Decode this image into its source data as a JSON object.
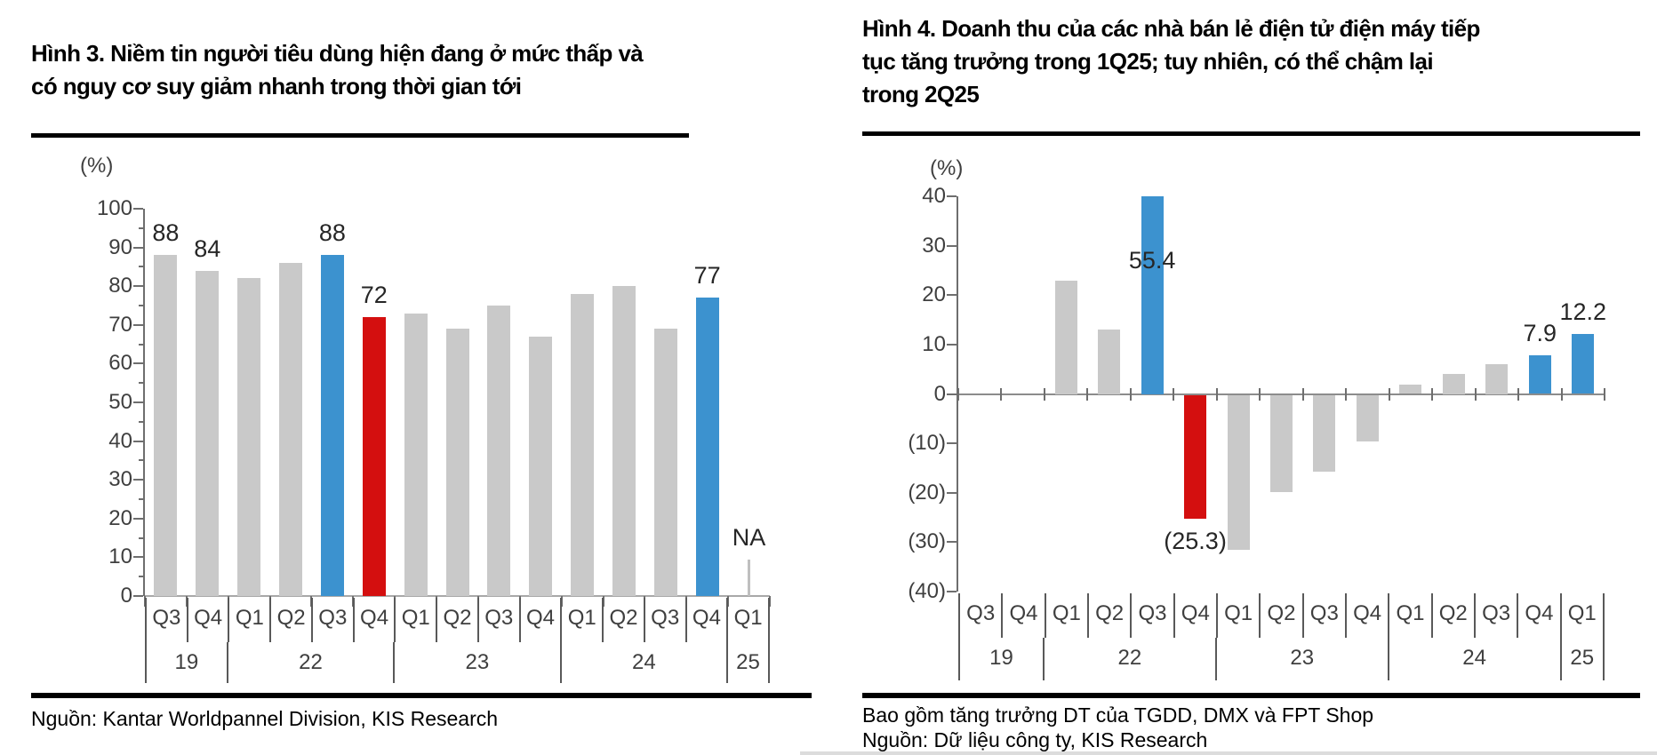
{
  "colors": {
    "gray_bar": "#C9C9C9",
    "blue_bar": "#3C92CF",
    "red_bar": "#D40F0F",
    "na_marker": "#BFBFBF",
    "axis_line": "#6E6E6E",
    "table_line": "#595959",
    "tick_text": "#3F3F3F",
    "label_text": "#262626"
  },
  "figure3": {
    "title_lines": [
      "Hình 3. Niềm tin người tiêu dùng hiện đang ở mức thấp và",
      "có nguy cơ suy giảm nhanh trong thời gian tới"
    ],
    "source": "Nguồn: Kantar Worldpannel Division, KIS Research"
  },
  "figure4": {
    "title_lines": [
      "Hình 4. Doanh thu của các nhà bán lẻ điện tử điện máy tiếp",
      "tục tăng trưởng trong 1Q25; tuy nhiên, có thể chậm lại",
      "trong 2Q25"
    ],
    "footnote": "Bao gồm tăng trưởng DT của TGDD, DMX và FPT Shop",
    "source": "Nguồn: Dữ liệu công ty, KIS Research"
  },
  "chart_data": [
    {
      "id": "fig3",
      "type": "bar",
      "title": "Hình 3. Niềm tin người tiêu dùng hiện đang ở mức thấp và có nguy cơ suy giảm nhanh trong thời gian tới",
      "unit_label": "(%)",
      "ylim": [
        0,
        100
      ],
      "ytick_step": 10,
      "minor_tick_step": 5,
      "grid": false,
      "legend": false,
      "ytick_values": [
        100,
        90,
        80,
        70,
        60,
        50,
        40,
        30,
        20,
        10,
        0
      ],
      "ytick_labels": [
        "100",
        "90",
        "80",
        "70",
        "60",
        "50",
        "40",
        "30",
        "20",
        "10",
        "0"
      ],
      "quarters": [
        "Q3",
        "Q4",
        "Q1",
        "Q2",
        "Q3",
        "Q4",
        "Q1",
        "Q2",
        "Q3",
        "Q4",
        "Q1",
        "Q2",
        "Q3",
        "Q4",
        "Q1"
      ],
      "year_groups": [
        {
          "label": "19",
          "count": 2
        },
        {
          "label": "22",
          "count": 4
        },
        {
          "label": "23",
          "count": 4
        },
        {
          "label": "24",
          "count": 4
        },
        {
          "label": "25",
          "count": 1
        }
      ],
      "values": [
        88,
        84,
        82,
        86,
        88,
        72,
        73,
        69,
        75,
        67,
        78,
        80,
        69,
        77,
        null
      ],
      "bar_color_keys": [
        "gray_bar",
        "gray_bar",
        "gray_bar",
        "gray_bar",
        "blue_bar",
        "red_bar",
        "gray_bar",
        "gray_bar",
        "gray_bar",
        "gray_bar",
        "gray_bar",
        "gray_bar",
        "gray_bar",
        "blue_bar",
        "na_marker"
      ],
      "data_labels": [
        {
          "index": 0,
          "text": "88",
          "pos": "above"
        },
        {
          "index": 1,
          "text": "84",
          "pos": "above"
        },
        {
          "index": 4,
          "text": "88",
          "pos": "above"
        },
        {
          "index": 5,
          "text": "72",
          "pos": "above"
        },
        {
          "index": 13,
          "text": "77",
          "pos": "above"
        },
        {
          "index": 14,
          "text": "NA",
          "pos": "above"
        }
      ],
      "na_marker": {
        "index": 14,
        "height_units": 9.5
      }
    },
    {
      "id": "fig4",
      "type": "bar",
      "title": "Hình 4. Doanh thu của các nhà bán lẻ điện tử điện máy tiếp tục tăng trưởng trong 1Q25; tuy nhiên, có thể chậm lại trong 2Q25",
      "unit_label": "(%)",
      "ylim": [
        -40,
        40
      ],
      "ytick_step": 10,
      "clip_max": 40,
      "grid": false,
      "legend": false,
      "ytick_values": [
        40,
        30,
        20,
        10,
        0,
        -10,
        -20,
        -30,
        -40
      ],
      "ytick_labels": [
        "40",
        "30",
        "20",
        "10",
        "0",
        "(10)",
        "(20)",
        "(30)",
        "(40)"
      ],
      "quarters": [
        "Q3",
        "Q4",
        "Q1",
        "Q2",
        "Q3",
        "Q4",
        "Q1",
        "Q2",
        "Q3",
        "Q4",
        "Q1",
        "Q2",
        "Q3",
        "Q4",
        "Q1"
      ],
      "year_groups": [
        {
          "label": "19",
          "count": 2
        },
        {
          "label": "22",
          "count": 4
        },
        {
          "label": "23",
          "count": 4
        },
        {
          "label": "24",
          "count": 4
        },
        {
          "label": "25",
          "count": 1
        }
      ],
      "values": [
        null,
        null,
        23,
        13,
        55.4,
        -25.3,
        -31.5,
        -19.8,
        -15.8,
        -9.7,
        1.8,
        4,
        6,
        7.9,
        12.2
      ],
      "bar_color_keys": [
        "gray_bar",
        "gray_bar",
        "gray_bar",
        "gray_bar",
        "blue_bar",
        "red_bar",
        "gray_bar",
        "gray_bar",
        "gray_bar",
        "gray_bar",
        "gray_bar",
        "gray_bar",
        "gray_bar",
        "blue_bar",
        "blue_bar"
      ],
      "data_labels": [
        {
          "index": 4,
          "text": "55.4",
          "pos_value": 27
        },
        {
          "index": 5,
          "text": "(25.3)",
          "pos": "below"
        },
        {
          "index": 13,
          "text": "7.9",
          "pos": "above"
        },
        {
          "index": 14,
          "text": "12.2",
          "pos": "above"
        }
      ]
    }
  ]
}
